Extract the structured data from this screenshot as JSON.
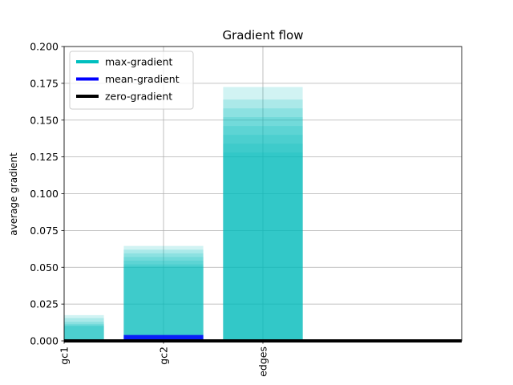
{
  "chart_data": {
    "type": "bar",
    "title": "Gradient flow",
    "xlabel": "",
    "ylabel": "average gradient",
    "categories": [
      "gc1",
      "gc2",
      "edges"
    ],
    "ylim": [
      0,
      0.2
    ],
    "yticks": [
      "0.000",
      "0.025",
      "0.050",
      "0.075",
      "0.100",
      "0.125",
      "0.150",
      "0.175",
      "0.200"
    ],
    "ytick_values": [
      0,
      0.025,
      0.05,
      0.075,
      0.1,
      0.125,
      0.15,
      0.175,
      0.2
    ],
    "grid": true,
    "legend_position": "top-left",
    "series": [
      {
        "name": "max-gradient",
        "color": "#00bfbf",
        "values": [
          0.0175,
          0.0645,
          0.1725
        ],
        "layered_values": [
          [
            0.0175,
            0.0155,
            0.013,
            0.0115,
            0.0105,
            0.01
          ],
          [
            0.0645,
            0.062,
            0.0595,
            0.057,
            0.0545,
            0.052,
            0.0505
          ],
          [
            0.1725,
            0.164,
            0.158,
            0.152,
            0.146,
            0.14,
            0.134,
            0.128
          ]
        ]
      },
      {
        "name": "mean-gradient",
        "color": "#0000ff",
        "values": [
          0.0005,
          0.004,
          0.0005
        ]
      },
      {
        "name": "zero-gradient",
        "color": "#000000",
        "values": [
          0,
          0,
          0
        ]
      }
    ]
  }
}
